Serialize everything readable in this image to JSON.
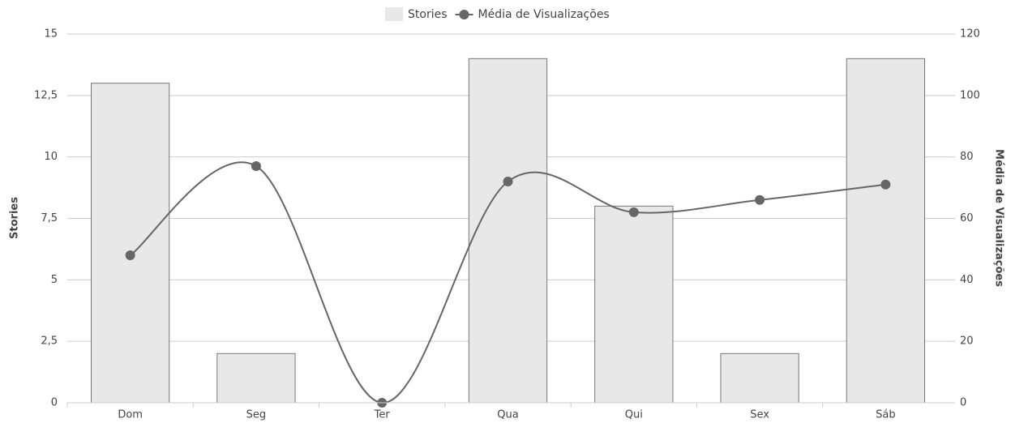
{
  "chart_data": {
    "type": "bar_line",
    "categories": [
      "Dom",
      "Seg",
      "Ter",
      "Qua",
      "Qui",
      "Sex",
      "Sáb"
    ],
    "series": [
      {
        "name": "Stories",
        "type": "bar",
        "color": "#e8e8e8",
        "values": [
          13,
          2,
          0,
          14,
          8,
          2,
          14
        ]
      },
      {
        "name": "Média de Visualizações",
        "type": "line",
        "axis": "y2",
        "color": "#666666",
        "values": [
          48,
          77,
          0,
          72,
          62,
          66,
          71
        ]
      }
    ],
    "ylabel": "Stories",
    "y2label": "Média de Visualizações",
    "ylim": [
      0,
      15
    ],
    "yticks": [
      0,
      {
        "value": 2.5,
        "label": "2,5"
      },
      5,
      {
        "value": 7.5,
        "label": "7,5"
      },
      10,
      {
        "value": 12.5,
        "label": "12,5"
      },
      15
    ],
    "y2lim": [
      0,
      120
    ],
    "y2ticks": [
      0,
      20,
      40,
      60,
      80,
      100,
      120
    ],
    "grid": true,
    "legend": "top"
  }
}
